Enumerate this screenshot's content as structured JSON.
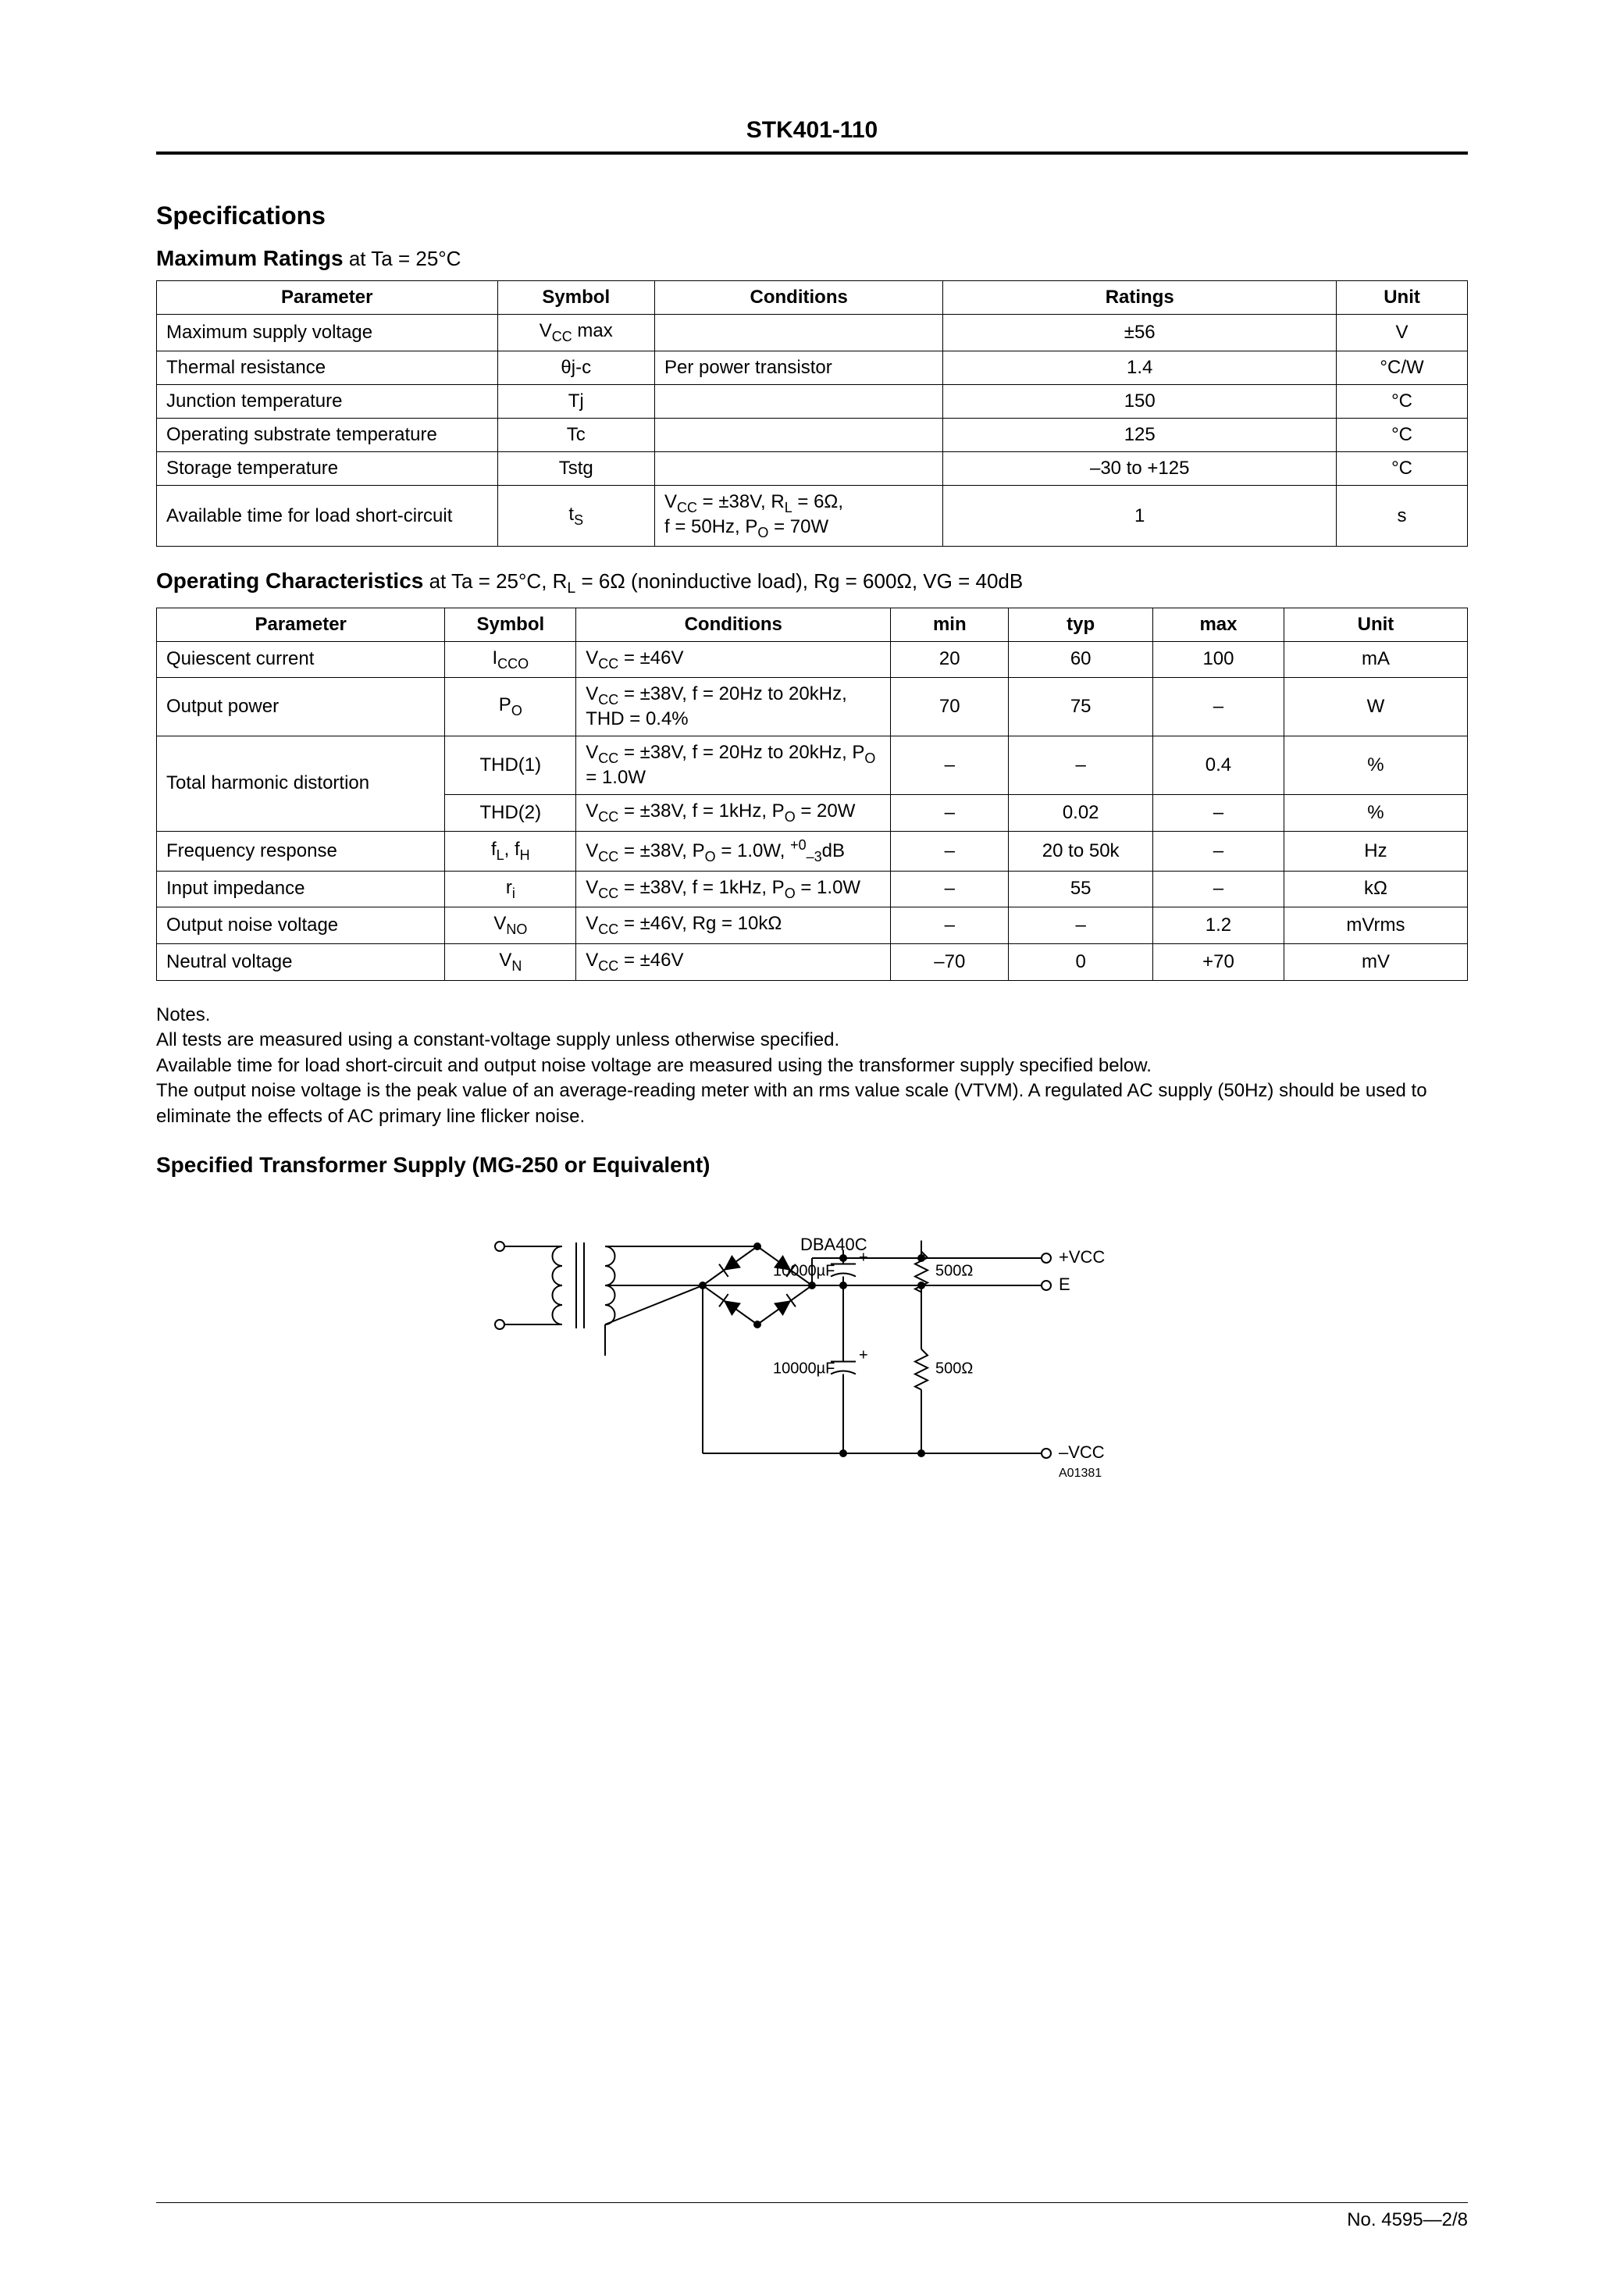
{
  "part_number": "STK401-110",
  "headings": {
    "specifications": "Specifications",
    "max_ratings_prefix": "Maximum Ratings",
    "max_ratings_cond": " at Ta = 25°C",
    "op_char_prefix": "Operating Characteristics",
    "op_char_cond": " at Ta = 25°C, R_L = 6Ω (noninductive load), Rg = 600Ω, VG = 40dB",
    "transformer": "Specified Transformer Supply (MG-250 or Equivalent)"
  },
  "max_table": {
    "headers": {
      "parameter": "Parameter",
      "symbol": "Symbol",
      "conditions": "Conditions",
      "ratings": "Ratings",
      "unit": "Unit"
    },
    "col_widths": [
      "26%",
      "12%",
      "22%",
      "30%",
      "10%"
    ],
    "rows": [
      {
        "parameter": "Maximum supply voltage",
        "symbol_html": "V<sub>CC</sub> max",
        "conditions": "",
        "ratings": "±56",
        "unit": "V"
      },
      {
        "parameter": "Thermal resistance",
        "symbol_html": "θj-c",
        "conditions": "Per power transistor",
        "ratings": "1.4",
        "unit": "°C/W"
      },
      {
        "parameter": "Junction temperature",
        "symbol_html": "Tj",
        "conditions": "",
        "ratings": "150",
        "unit": "°C"
      },
      {
        "parameter": "Operating substrate temperature",
        "symbol_html": "Tc",
        "conditions": "",
        "ratings": "125",
        "unit": "°C"
      },
      {
        "parameter": "Storage temperature",
        "symbol_html": "Tstg",
        "conditions": "",
        "ratings": "–30 to +125",
        "unit": "°C"
      },
      {
        "parameter": "Available time for load short-circuit",
        "symbol_html": "t<sub>S</sub>",
        "conditions_html": "V<sub>CC</sub> = ±38V, R<sub>L</sub> = 6Ω,<br>f = 50Hz, P<sub>O</sub> = 70W",
        "ratings": "1",
        "unit": "s"
      }
    ]
  },
  "op_table": {
    "headers": {
      "parameter": "Parameter",
      "symbol": "Symbol",
      "conditions": "Conditions",
      "min": "min",
      "typ": "typ",
      "max": "max",
      "unit": "Unit"
    },
    "col_widths": [
      "22%",
      "10%",
      "24%",
      "9%",
      "11%",
      "10%",
      "14%"
    ],
    "rows": [
      {
        "parameter": "Quiescent current",
        "symbol_html": "I<sub>CCO</sub>",
        "conditions_html": "V<sub>CC</sub> = ±46V",
        "min": "20",
        "typ": "60",
        "max": "100",
        "unit": "mA"
      },
      {
        "parameter": "Output power",
        "symbol_html": "P<sub>O</sub>",
        "conditions_html": "V<sub>CC</sub> = ±38V, f = 20Hz to 20kHz, THD = 0.4%",
        "min": "70",
        "typ": "75",
        "max": "–",
        "unit": "W"
      },
      {
        "parameter": "Total harmonic distortion",
        "rowspan": 2,
        "symbol_html": "THD(1)",
        "conditions_html": "V<sub>CC</sub> = ±38V, f = 20Hz to 20kHz, P<sub>O</sub> = 1.0W",
        "min": "–",
        "typ": "–",
        "max": "0.4",
        "unit": "%"
      },
      {
        "symbol_html": "THD(2)",
        "conditions_html": "V<sub>CC</sub> = ±38V, f = 1kHz, P<sub>O</sub> = 20W",
        "min": "–",
        "typ": "0.02",
        "max": "–",
        "unit": "%"
      },
      {
        "parameter": "Frequency response",
        "symbol_html": "f<sub>L</sub>, f<sub>H</sub>",
        "conditions_html": "V<sub>CC</sub> = ±38V, P<sub>O</sub> = 1.0W, <sup>+0</sup><sub>–3</sub>dB",
        "min": "–",
        "typ": "20 to 50k",
        "max": "–",
        "unit": "Hz"
      },
      {
        "parameter": "Input impedance",
        "symbol_html": "r<sub>i</sub>",
        "conditions_html": "V<sub>CC</sub> = ±38V, f = 1kHz, P<sub>O</sub> = 1.0W",
        "min": "–",
        "typ": "55",
        "max": "–",
        "unit": "kΩ"
      },
      {
        "parameter": "Output noise voltage",
        "symbol_html": "V<sub>NO</sub>",
        "conditions_html": "V<sub>CC</sub> = ±46V, Rg = 10kΩ",
        "min": "–",
        "typ": "–",
        "max": "1.2",
        "unit": "mVrms"
      },
      {
        "parameter": "Neutral voltage",
        "symbol_html": "V<sub>N</sub>",
        "conditions_html": "V<sub>CC</sub> = ±46V",
        "min": "–70",
        "typ": "0",
        "max": "+70",
        "unit": "mV"
      }
    ]
  },
  "notes": {
    "title": "Notes.",
    "lines": [
      "All tests are measured using a constant-voltage supply unless otherwise specified.",
      "Available time for load short-circuit and output noise voltage are measured using the transformer supply specified below.",
      "The output noise voltage is the peak value of an average-reading meter with an rms value scale (VTVM). A regulated AC supply (50Hz) should be used to eliminate the effects of AC primary line flicker noise."
    ]
  },
  "diagram": {
    "labels": {
      "bridge": "DBA40C",
      "cap": "10000µF",
      "res": "500Ω",
      "vcc_plus": "+VCC",
      "e": "E",
      "vcc_minus": "–VCC",
      "code": "A01381"
    },
    "colors": {
      "stroke": "#000000",
      "fill": "#000000",
      "bg": "#ffffff"
    },
    "stroke_width": 2
  },
  "footer": "No. 4595—2/8"
}
